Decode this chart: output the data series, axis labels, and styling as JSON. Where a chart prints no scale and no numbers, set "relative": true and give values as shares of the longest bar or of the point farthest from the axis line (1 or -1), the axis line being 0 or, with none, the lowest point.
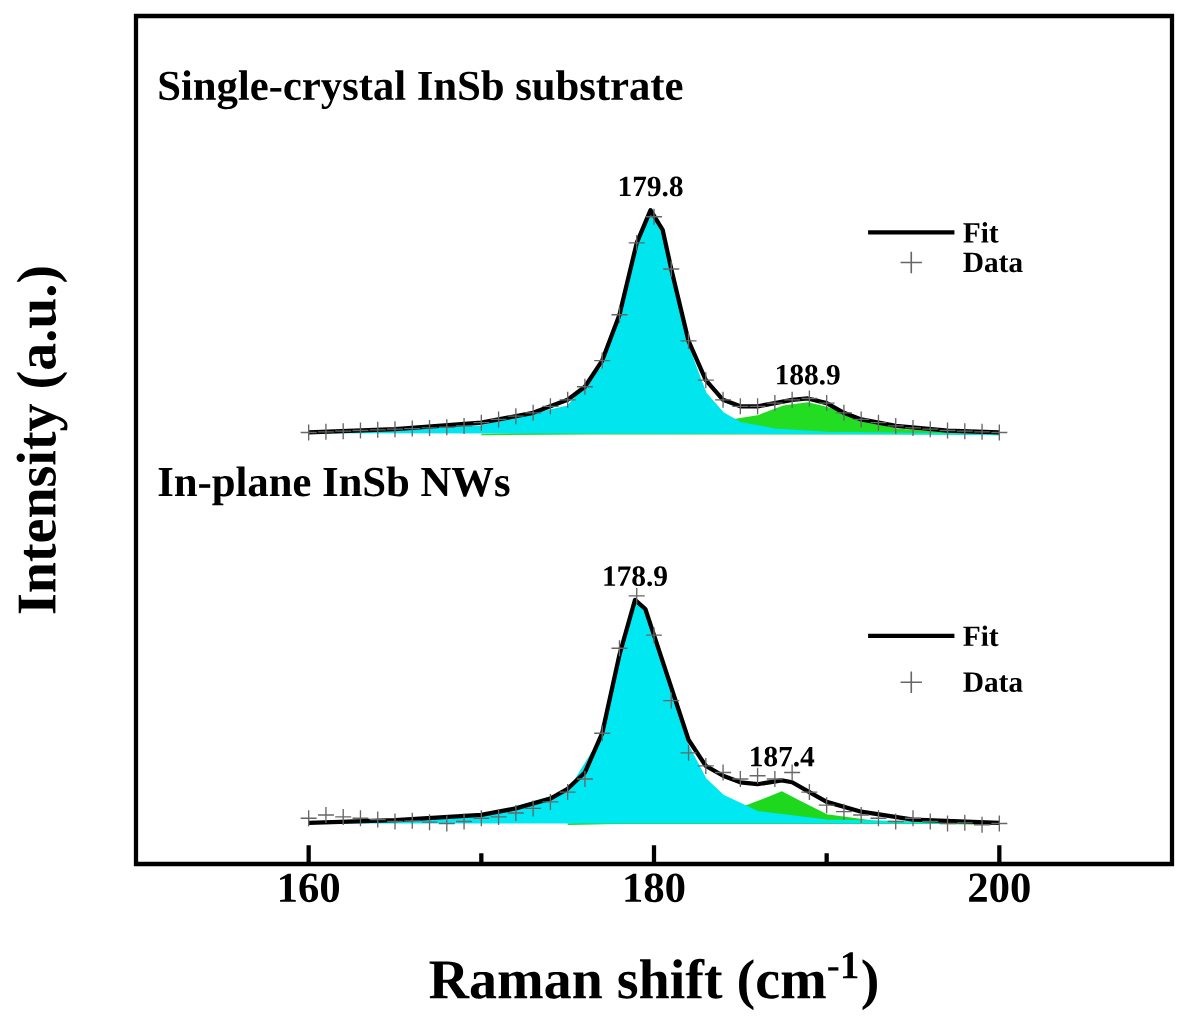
{
  "chart_data": {
    "type": "line",
    "relative": true,
    "xlabel": "Raman shift (cm$^{-1}$)",
    "ylabel": "Intensity (a.u.)",
    "xlim": [
      150,
      210
    ],
    "xticks": [
      160,
      180,
      200
    ],
    "tick_labels": "x",
    "grid": false,
    "legend": "right",
    "annotations": [
      "Single-crystal InSb substrate",
      "In-plane InSb NWs",
      {
        "text": "179.8",
        "x": 179.8,
        "y": 1.0
      },
      {
        "text": "188.9",
        "x": 188.9,
        "y": 0.712
      },
      {
        "text": "178.9",
        "x": 178.9,
        "y": 0.404
      },
      {
        "text": "187.4",
        "x": 187.4,
        "y": 0.128
      }
    ],
    "series": [
      {
        "type": "area",
        "color": "#00e5ee",
        "x": [
          160,
          170,
          175,
          177,
          178,
          179,
          179.8,
          180.5,
          181,
          182,
          183,
          184,
          185,
          187,
          190,
          200
        ],
        "values": [
          0.659,
          0.67,
          0.7,
          0.76,
          0.83,
          0.94,
          0.995,
          0.96,
          0.9,
          0.79,
          0.72,
          0.69,
          0.675,
          0.665,
          0.66,
          0.657
        ]
      },
      {
        "type": "area",
        "color": "#22dd22",
        "x": [
          170,
          180,
          186,
          187.5,
          188.9,
          190,
          192,
          194,
          197,
          200
        ],
        "values": [
          0.657,
          0.66,
          0.685,
          0.7,
          0.705,
          0.698,
          0.68,
          0.665,
          0.659,
          0.657
        ]
      },
      {
        "name": "Fit",
        "color": "#000000",
        "line_style": "solid",
        "x": [
          160,
          165,
          170,
          173,
          175,
          176,
          177,
          178,
          179,
          179.8,
          180.5,
          181,
          182,
          183,
          184,
          185,
          186,
          187,
          188,
          188.9,
          190,
          191,
          192,
          194,
          197,
          200
        ],
        "values": [
          0.66,
          0.665,
          0.675,
          0.69,
          0.71,
          0.73,
          0.77,
          0.84,
          0.95,
          1.0,
          0.97,
          0.91,
          0.8,
          0.74,
          0.71,
          0.7,
          0.7,
          0.705,
          0.71,
          0.712,
          0.705,
          0.69,
          0.68,
          0.67,
          0.663,
          0.66
        ]
      },
      {
        "type": "scatter",
        "name": "Data",
        "color": "#666666",
        "marker": "cross",
        "x": [
          160,
          161,
          162,
          163,
          164,
          165,
          166,
          167,
          168,
          169,
          170,
          171,
          172,
          173,
          174,
          175,
          176,
          177,
          178,
          179,
          180,
          181,
          182,
          183,
          184,
          185,
          186,
          187,
          188,
          189,
          190,
          191,
          192,
          193,
          194,
          195,
          196,
          197,
          198,
          199,
          200
        ],
        "values": [
          0.66,
          0.661,
          0.662,
          0.663,
          0.664,
          0.665,
          0.666,
          0.667,
          0.668,
          0.67,
          0.675,
          0.68,
          0.685,
          0.69,
          0.7,
          0.71,
          0.73,
          0.77,
          0.84,
          0.95,
          0.99,
          0.91,
          0.8,
          0.74,
          0.71,
          0.7,
          0.7,
          0.705,
          0.71,
          0.712,
          0.705,
          0.69,
          0.68,
          0.675,
          0.67,
          0.667,
          0.665,
          0.663,
          0.662,
          0.661,
          0.66
        ]
      },
      {
        "type": "area",
        "color": "#00e8f2",
        "x": [
          160,
          170,
          175,
          177,
          178,
          178.9,
          179.5,
          180,
          181,
          182,
          183,
          184,
          186,
          190,
          200
        ],
        "values": [
          0.062,
          0.072,
          0.11,
          0.195,
          0.315,
          0.4,
          0.385,
          0.345,
          0.26,
          0.18,
          0.13,
          0.105,
          0.08,
          0.067,
          0.062
        ]
      },
      {
        "type": "area",
        "color": "#1ed81e",
        "x": [
          175,
          183,
          186.5,
          187.4,
          188.5,
          190,
          193,
          200
        ],
        "values": [
          0.061,
          0.065,
          0.1,
          0.11,
          0.095,
          0.075,
          0.064,
          0.061
        ]
      },
      {
        "name": "Fit",
        "color": "#000000",
        "line_style": "solid",
        "x": [
          160,
          165,
          170,
          172,
          174,
          175,
          176,
          177,
          178,
          178.9,
          179.5,
          180,
          181,
          182,
          183,
          184,
          185,
          186,
          187.4,
          188,
          189,
          190,
          192,
          195,
          200
        ],
        "values": [
          0.063,
          0.067,
          0.075,
          0.085,
          0.1,
          0.115,
          0.14,
          0.2,
          0.32,
          0.404,
          0.39,
          0.35,
          0.27,
          0.19,
          0.15,
          0.135,
          0.125,
          0.122,
          0.128,
          0.125,
          0.11,
          0.095,
          0.08,
          0.068,
          0.063
        ]
      },
      {
        "type": "scatter",
        "name": "Data",
        "color": "#666666",
        "marker": "cross",
        "x": [
          160,
          161,
          162,
          163,
          164,
          165,
          166,
          167,
          168,
          169,
          170,
          171,
          172,
          173,
          174,
          175,
          176,
          177,
          178,
          179,
          180,
          181,
          182,
          183,
          184,
          185,
          186,
          187,
          188,
          189,
          190,
          191,
          192,
          193,
          194,
          195,
          196,
          197,
          198,
          199,
          200
        ],
        "values": [
          0.07,
          0.075,
          0.072,
          0.07,
          0.068,
          0.065,
          0.066,
          0.064,
          0.062,
          0.065,
          0.07,
          0.072,
          0.078,
          0.085,
          0.095,
          0.11,
          0.13,
          0.2,
          0.33,
          0.41,
          0.35,
          0.25,
          0.17,
          0.15,
          0.14,
          0.13,
          0.135,
          0.13,
          0.14,
          0.11,
          0.09,
          0.08,
          0.075,
          0.07,
          0.065,
          0.07,
          0.065,
          0.062,
          0.063,
          0.06,
          0.062
        ]
      }
    ]
  }
}
